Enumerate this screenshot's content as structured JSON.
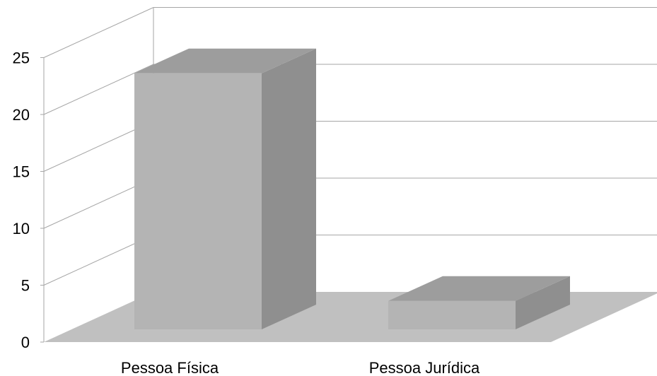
{
  "chart_data": {
    "type": "bar",
    "categories": [
      "Pessoa Física",
      "Pessoa Jurídica"
    ],
    "values": [
      23,
      3
    ],
    "ylim": [
      0,
      25
    ],
    "yticks": [
      "0",
      "5",
      "10",
      "15",
      "20",
      "25"
    ],
    "grid": true,
    "legend": "none",
    "colors": {
      "bar_front": "#b4b4b4",
      "bar_side": "#8f8f8f",
      "bar_top": "#9d9d9d",
      "floor": "#c0c0c0",
      "grid": "#a6a6a6"
    }
  }
}
